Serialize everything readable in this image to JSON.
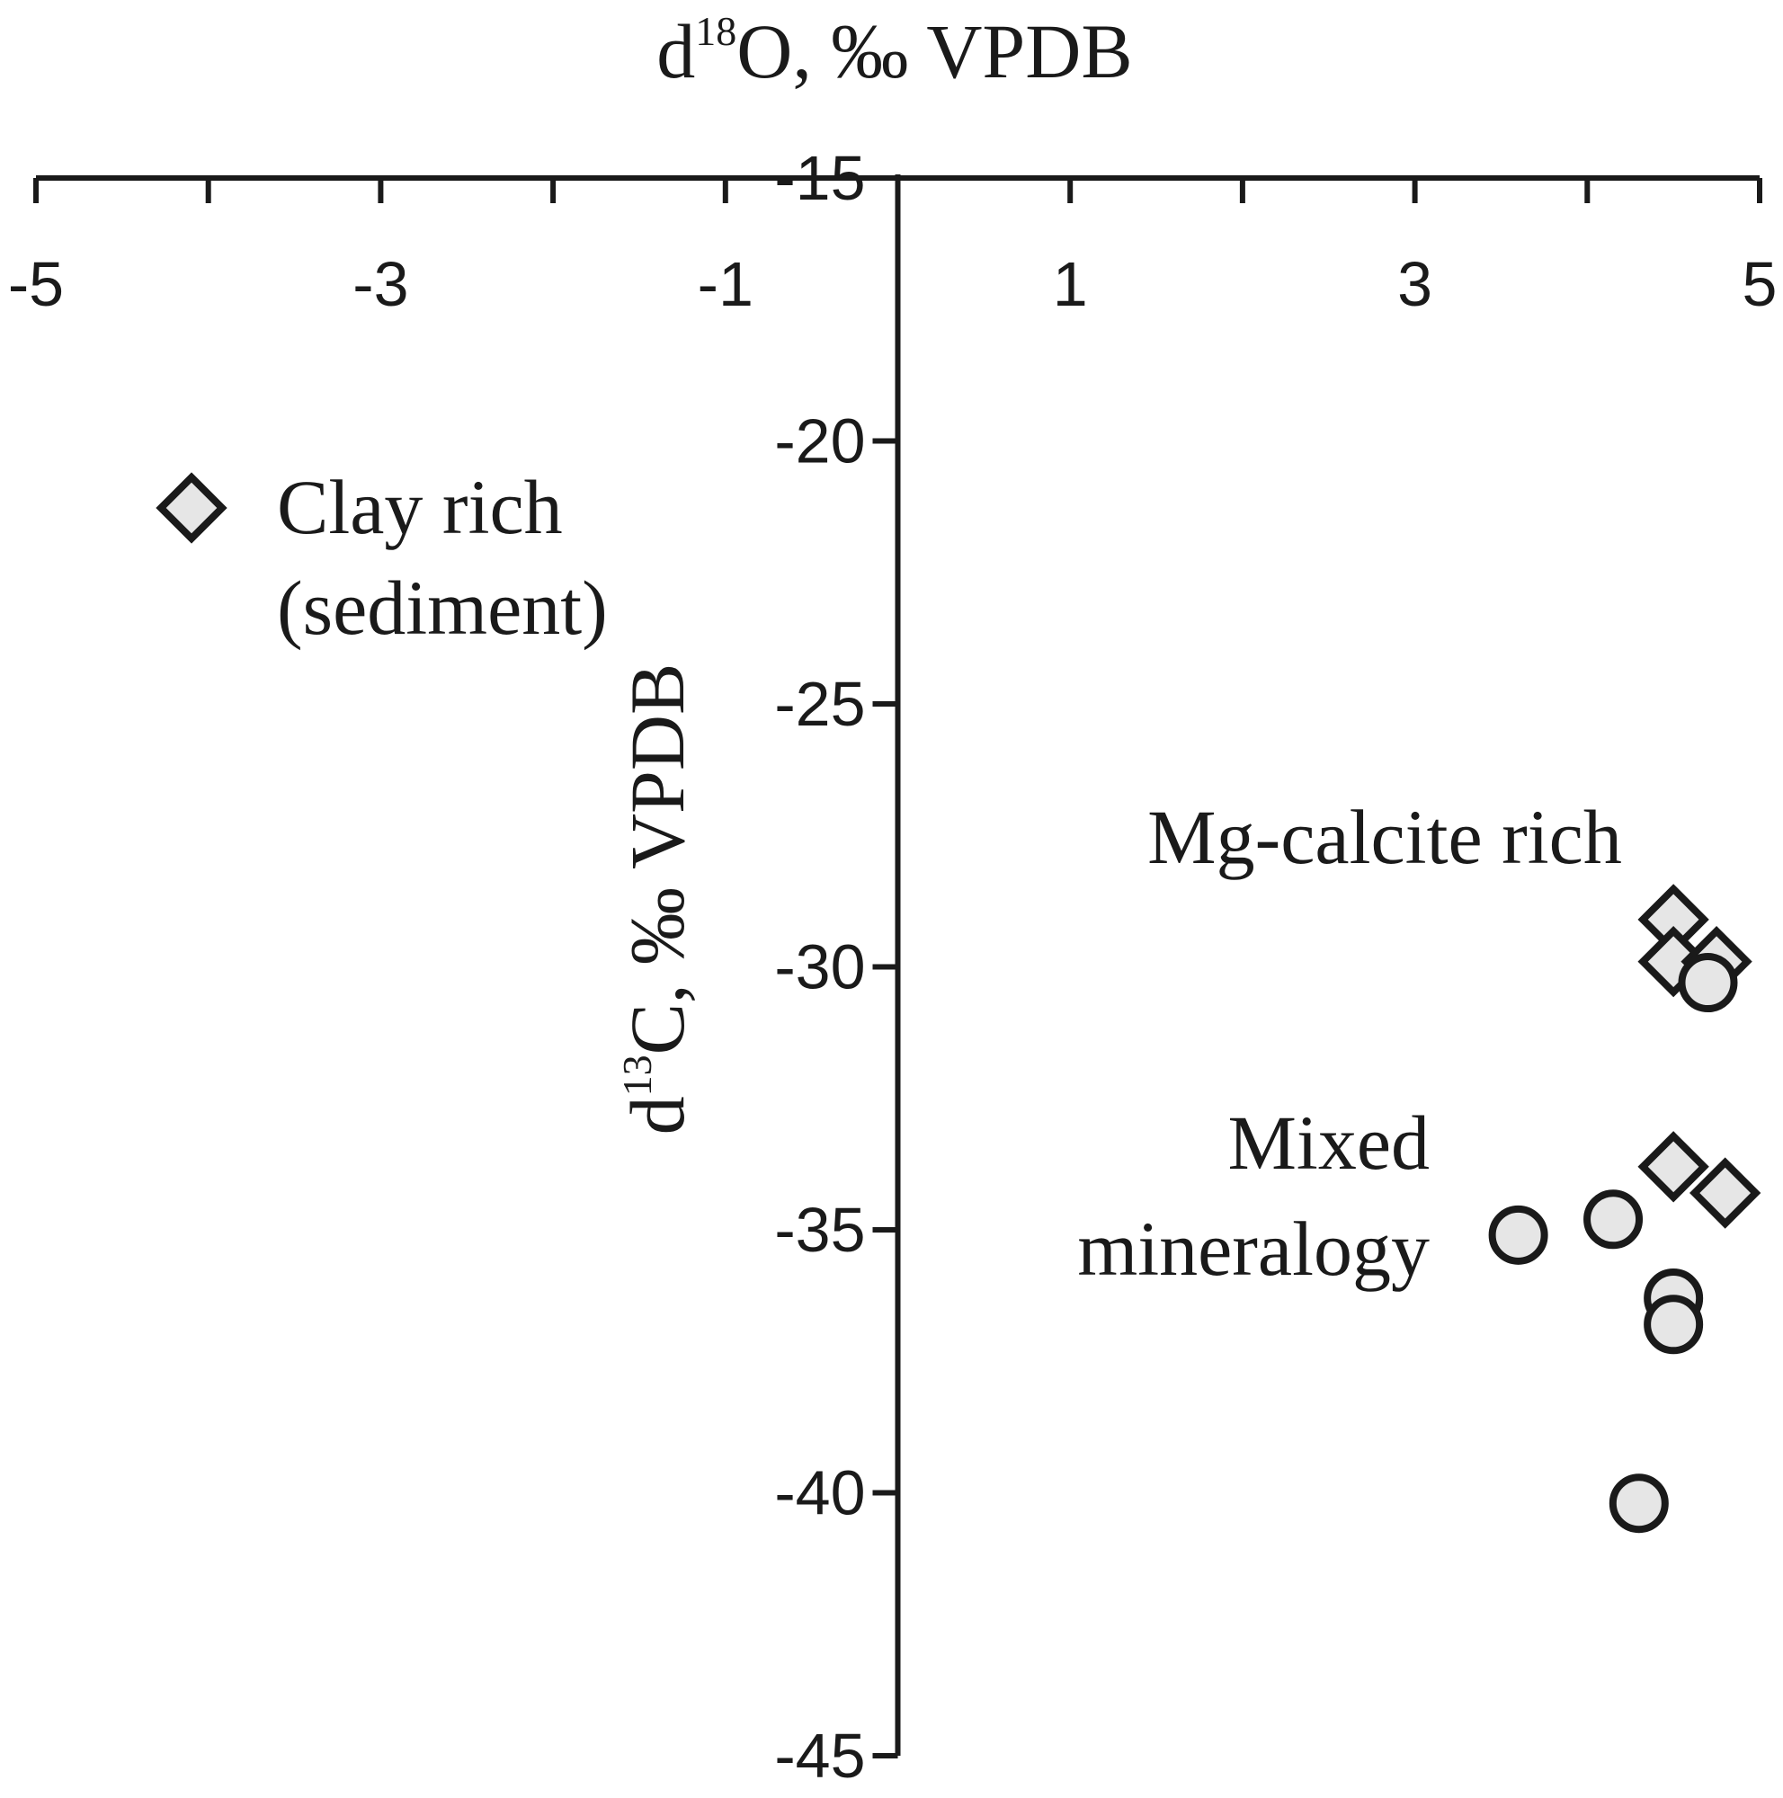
{
  "chart_data": {
    "type": "scatter",
    "x_axis_title": {
      "prefix": "d",
      "superscript": "18",
      "rest": "O, ‰ VPDB"
    },
    "y_axis_title": {
      "prefix": "d",
      "superscript": "13",
      "rest": "C, ‰ VPDB"
    },
    "x_range": [
      -5,
      5
    ],
    "y_range": [
      -45,
      -15
    ],
    "x_ticks": [
      -5,
      -4,
      -3,
      -2,
      -1,
      0,
      1,
      2,
      3,
      4,
      5
    ],
    "x_tick_labels": [
      "-5",
      "-3",
      "-1",
      "1",
      "3",
      "5"
    ],
    "x_tick_label_values": [
      -5,
      -3,
      -1,
      1,
      3,
      5
    ],
    "y_ticks": [
      -15,
      -20,
      -25,
      -30,
      -35,
      -40,
      -45
    ],
    "y_tick_labels": [
      "-15",
      "-20",
      "-25",
      "-30",
      "-35",
      "-40",
      "-45"
    ],
    "axes_cross_at": {
      "x": 0,
      "y": -15
    },
    "grid": false,
    "legend": {
      "placement": "upper-left",
      "entries": [
        {
          "marker": "diamond",
          "lines": [
            "Clay rich",
            "(sediment)"
          ]
        }
      ]
    },
    "annotations": [
      {
        "id": "mg-calcite",
        "lines": [
          "Mg-calcite rich"
        ]
      },
      {
        "id": "mixed",
        "lines": [
          "Mixed",
          "mineralogy"
        ]
      }
    ],
    "series": [
      {
        "marker": "diamond",
        "points": [
          {
            "x": 4.5,
            "y": -29.1
          },
          {
            "x": 4.5,
            "y": -29.9
          },
          {
            "x": 4.75,
            "y": -29.9
          },
          {
            "x": 4.5,
            "y": -33.8
          },
          {
            "x": 4.8,
            "y": -34.3
          }
        ]
      },
      {
        "marker": "circle",
        "points": [
          {
            "x": 4.7,
            "y": -30.3
          },
          {
            "x": 3.6,
            "y": -35.1
          },
          {
            "x": 4.15,
            "y": -34.8
          },
          {
            "x": 4.5,
            "y": -36.3
          },
          {
            "x": 4.5,
            "y": -36.8
          },
          {
            "x": 4.3,
            "y": -40.2
          }
        ]
      }
    ],
    "colors": {
      "marker_fill": "#e6e6e6",
      "marker_stroke": "#1a1a1a",
      "axis": "#1a1a1a"
    }
  }
}
